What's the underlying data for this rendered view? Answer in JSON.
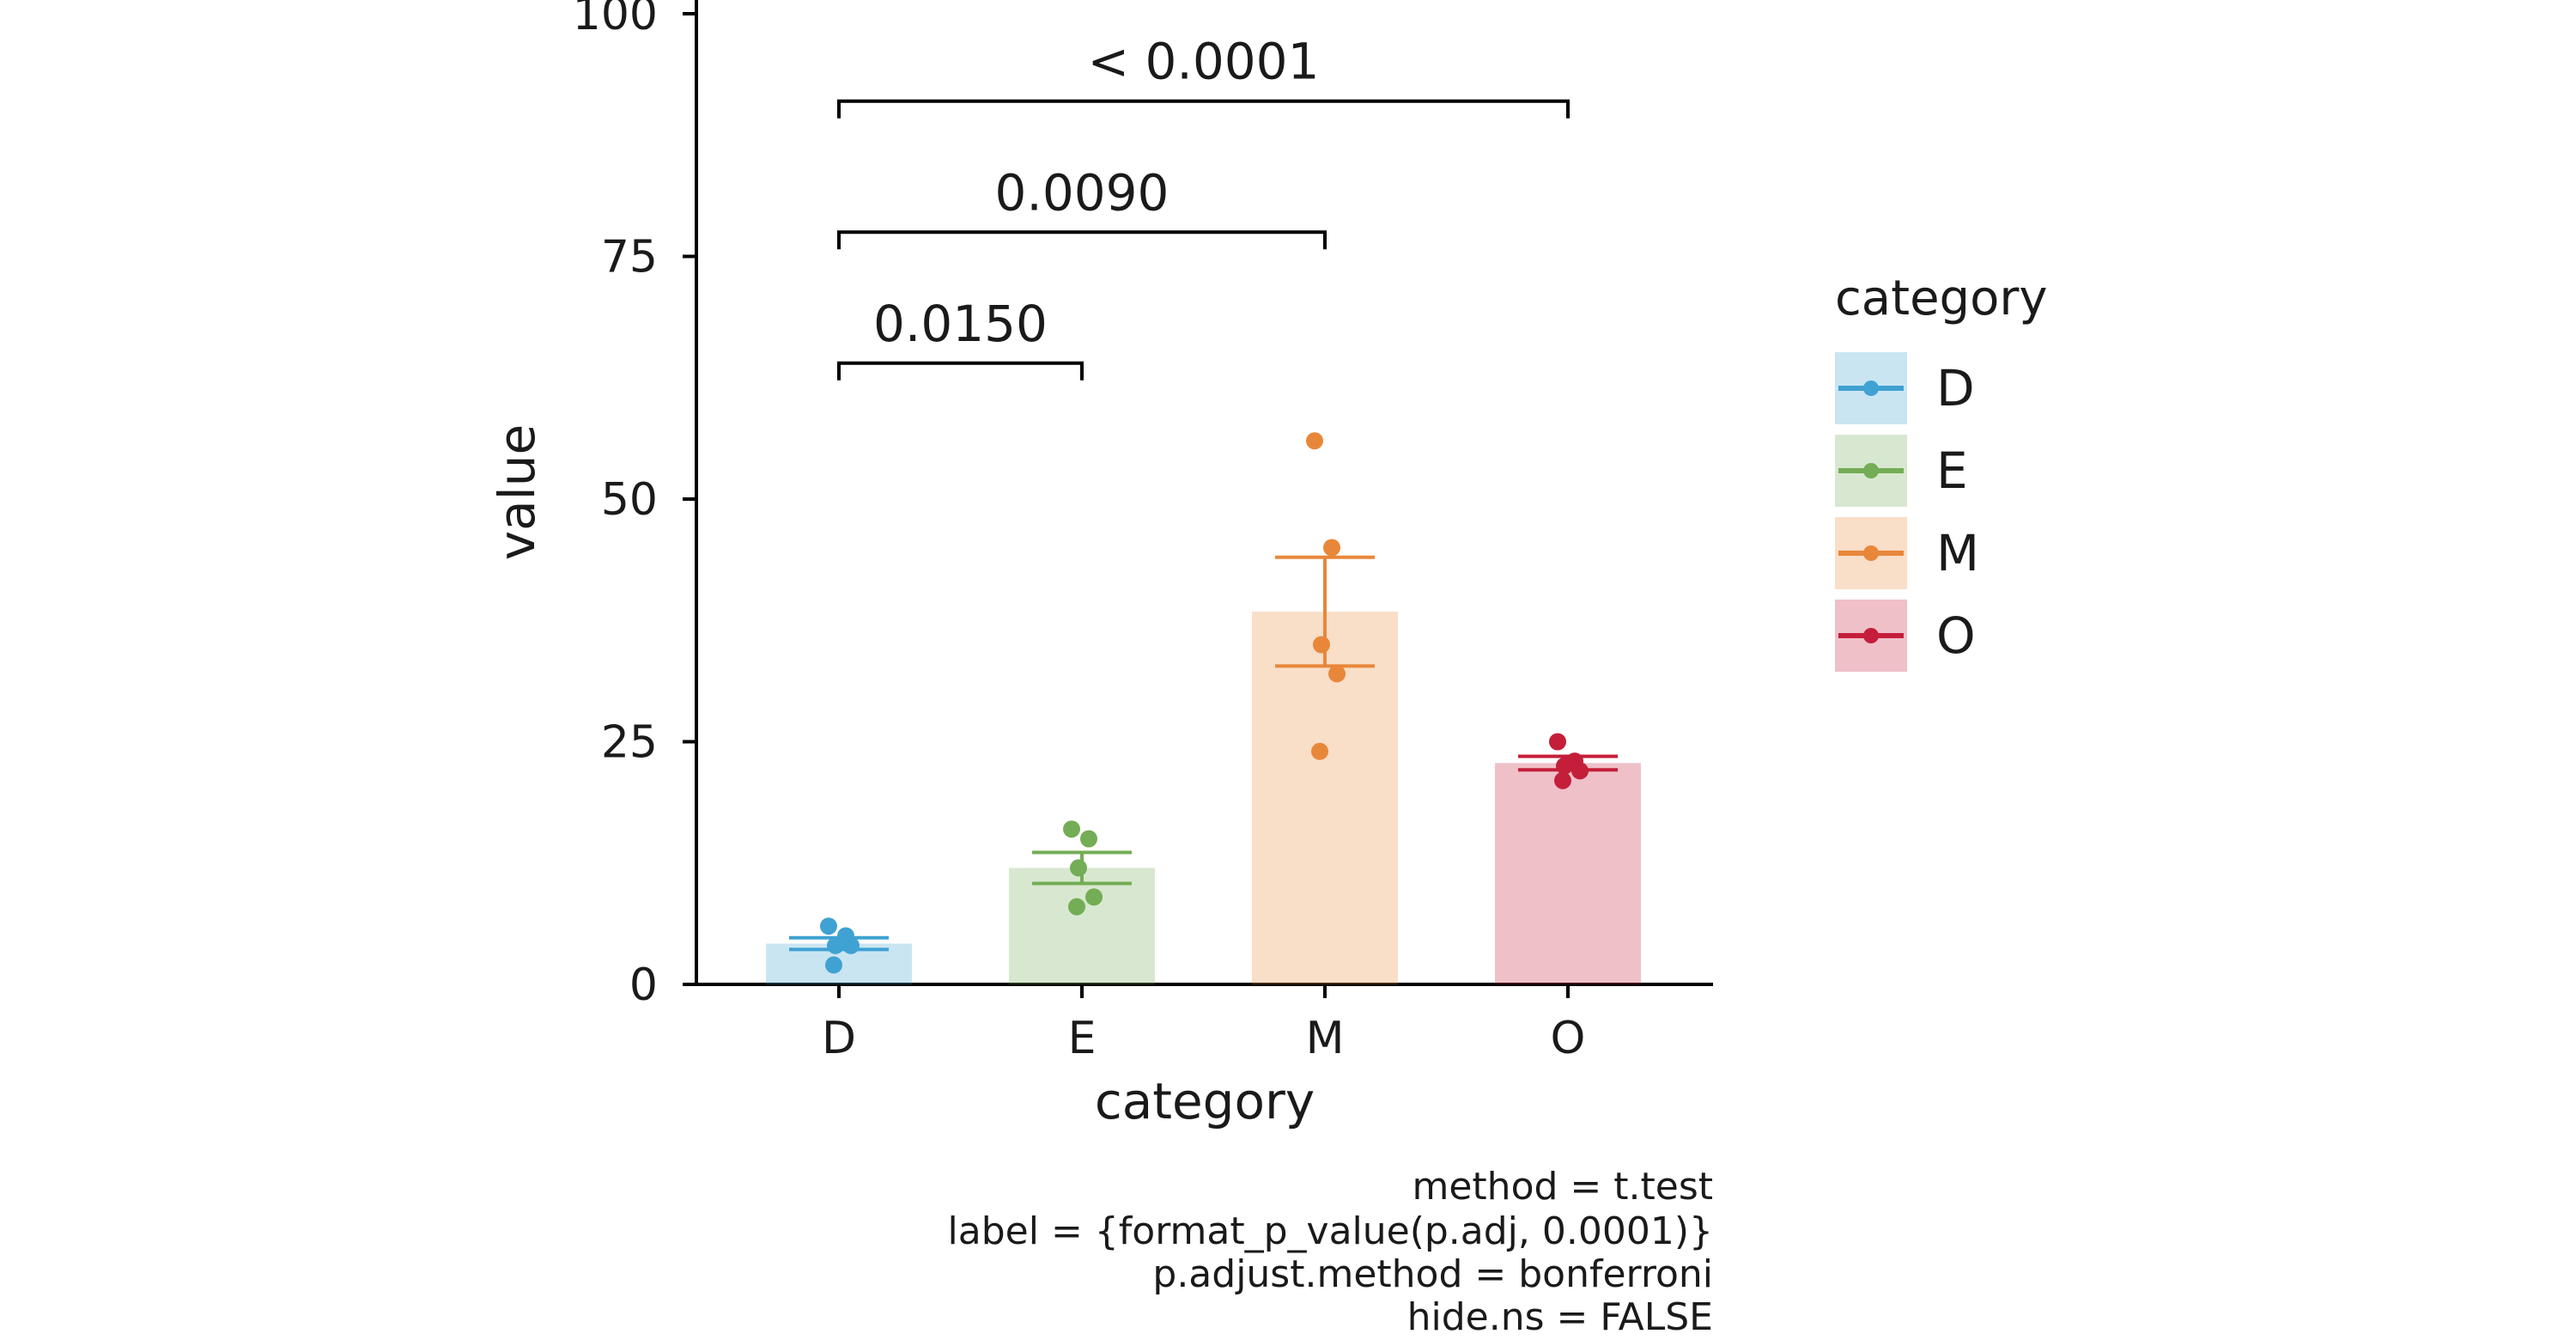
{
  "chart_data": {
    "type": "bar",
    "xlabel": "category",
    "ylabel": "value",
    "ylim": [
      0,
      100
    ],
    "yticks": [
      0,
      25,
      50,
      75,
      100
    ],
    "categories": [
      "D",
      "E",
      "M",
      "O"
    ],
    "colors": [
      "#3fa2d2",
      "#73ad55",
      "#e8873a",
      "#c41e3a"
    ],
    "bar_opacity": 0.28,
    "bars": [
      {
        "category": "D",
        "mean": 4.2,
        "se_low": 3.6,
        "se_high": 4.8,
        "points": [
          6,
          5,
          4,
          4,
          2
        ]
      },
      {
        "category": "E",
        "mean": 12.0,
        "se_low": 10.4,
        "se_high": 13.6,
        "points": [
          16,
          15,
          12,
          9,
          8
        ]
      },
      {
        "category": "M",
        "mean": 38.4,
        "se_low": 32.8,
        "se_high": 44.0,
        "points": [
          56,
          45,
          35,
          32,
          24
        ]
      },
      {
        "category": "O",
        "mean": 22.8,
        "se_low": 22.1,
        "se_high": 23.5,
        "points": [
          25,
          23,
          22.5,
          22,
          21
        ]
      }
    ],
    "comparisons": [
      {
        "from": "D",
        "to": "E",
        "y": 64,
        "label": "0.0150"
      },
      {
        "from": "D",
        "to": "M",
        "y": 77.5,
        "label": "0.0090"
      },
      {
        "from": "D",
        "to": "O",
        "y": 91,
        "label": "< 0.0001"
      }
    ],
    "legend": {
      "title": "category",
      "position": "right",
      "entries": [
        "D",
        "E",
        "M",
        "O"
      ]
    },
    "caption_lines": [
      "method = t.test",
      "label = {format_p_value(p.adj, 0.0001)}",
      "p.adjust.method = bonferroni",
      "hide.ns = FALSE"
    ]
  }
}
